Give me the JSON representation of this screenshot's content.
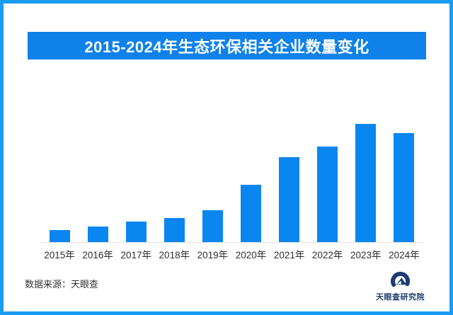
{
  "frame": {
    "border_color": "#1a9cf3",
    "background": "#ffffff"
  },
  "header": {
    "title": "2015-2024年生态环保相关企业数量变化",
    "banner_color": "#0e81ea",
    "text_color": "#ffffff"
  },
  "chart_data": {
    "type": "bar",
    "title": "2015-2024年生态环保相关企业数量变化",
    "categories": [
      "2015年",
      "2016年",
      "2017年",
      "2018年",
      "2019年",
      "2020年",
      "2021年",
      "2022年",
      "2023年",
      "2024年"
    ],
    "values": [
      10.2,
      13.2,
      17.4,
      20.4,
      26.9,
      48.5,
      71.9,
      80.8,
      100,
      92.2
    ],
    "units": "relative bar height, % of tallest bar (no value axis or data labels shown in image)",
    "bar_color": "#0a86f0",
    "xlabel": "",
    "ylabel": "",
    "value_axis_shown": false,
    "grid": false,
    "legend": false,
    "baseline_color": "#e3e3e3"
  },
  "footer": {
    "source_label": "数据来源：天眼查",
    "logo_text": "天眼查研究院",
    "logo_color": "#1e3c74"
  }
}
